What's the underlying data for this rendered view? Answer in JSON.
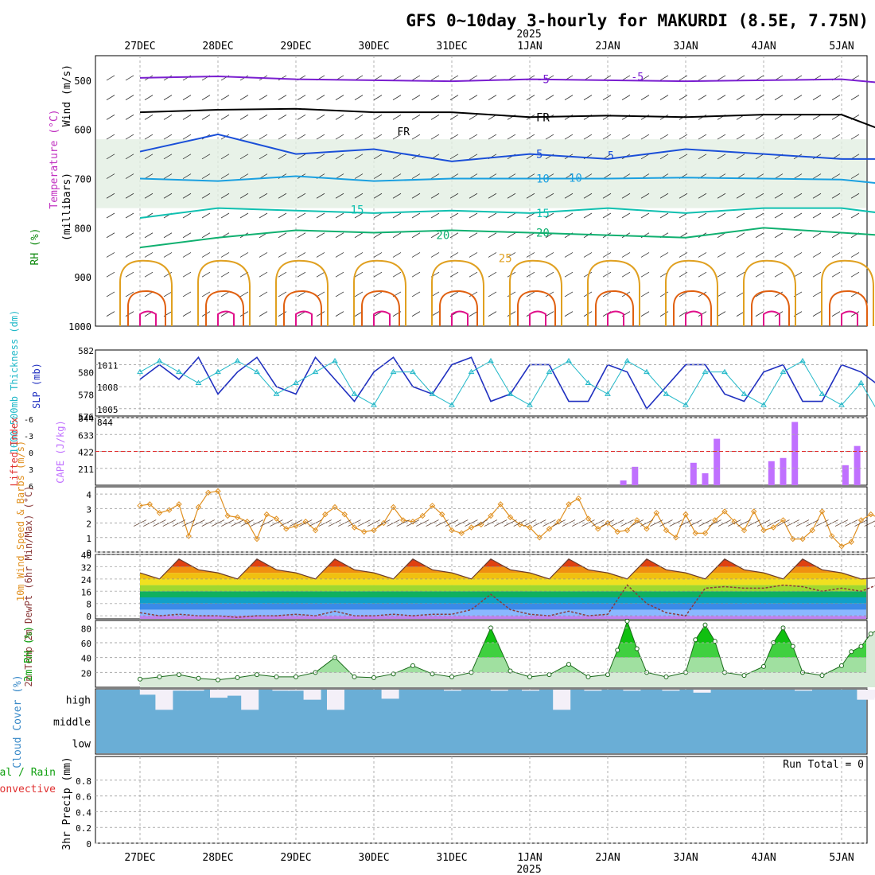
{
  "header": {
    "title": "GFS 0~10day 3-hourly for MAKURDI (8.5E, 7.75N)",
    "year": "2025"
  },
  "colors": {
    "purple": "#7a1fd0",
    "black": "#000000",
    "blue": "#1a4fd8",
    "lightblue": "#1aa0e0",
    "teal": "#10c0b0",
    "green": "#10b070",
    "orange": "#e0a020",
    "darkorange": "#e06010",
    "magenta": "#e0108a",
    "slp": "#2030c0",
    "thick": "#20b8c8",
    "li": "#e03030",
    "cape": "#c070ff",
    "wind10": "#e09020",
    "dewpt": "#8b3a3a",
    "rh": "#18c018",
    "cloud": "#6aaed6",
    "panelgrid": "#a0a0a0"
  },
  "x_axis": {
    "date_labels": [
      "27DEC",
      "28DEC",
      "29DEC",
      "30DEC",
      "31DEC",
      "1JAN",
      "2JAN",
      "3JAN",
      "4JAN",
      "5JAN"
    ]
  },
  "panels": {
    "upper_air": {
      "ylabel": "(millibars)",
      "ylabel_wind": "Wind (m/s)",
      "ylabel_temp": "Temperature (°C)",
      "ylabel_rh": "RH (%)",
      "yticks": [
        "500",
        "600",
        "700",
        "800",
        "900",
        "1000"
      ],
      "contour_labels": [
        "-5",
        "FR",
        "5",
        "10",
        "15",
        "20",
        "25"
      ]
    },
    "slp": {
      "ylabel_thick": "1000-500mb Thickness (dm)",
      "ylabel_slp": "SLP (mb)",
      "left_ticks": [
        "582",
        "580",
        "578",
        "576"
      ],
      "right_ticks": [
        "1011",
        "1008",
        "1005"
      ]
    },
    "cape": {
      "ylabel_li": "Lifted Index",
      "ylabel_cape": "CAPE (J/kg)",
      "left_ticks": [
        "-6",
        "-3",
        "0",
        "3",
        "6"
      ],
      "right_ticks": [
        "844",
        "633",
        "422",
        "211"
      ]
    },
    "wind10": {
      "ylabel": "10m Wind Speed & Barbs (m/s)",
      "ticks": [
        "4",
        "3",
        "2",
        "1",
        "0"
      ]
    },
    "temp2m": {
      "ylabel": "2m Temp 2m DewPt (6hr Min/Max) (°C)",
      "ticks": [
        "40",
        "32",
        "24",
        "16",
        "8",
        "0"
      ]
    },
    "rh2m": {
      "ylabel": "2m RH (%)",
      "ticks": [
        "80",
        "60",
        "40",
        "20"
      ]
    },
    "cloud": {
      "ylabel": "Cloud Cover (%)",
      "levels": [
        "high",
        "middle",
        "low"
      ]
    },
    "precip": {
      "ylabel": "3hr Precip (mm)",
      "ylabel_total": "Total / Rain",
      "ylabel_conv": "Convective",
      "ticks": [
        "0.8",
        "0.6",
        "0.4",
        "0.2",
        "0"
      ],
      "run_total": "Run Total = 0"
    }
  },
  "chart_data": [
    {
      "type": "line",
      "title": "GFS 0~10day 3-hourly for MAKURDI (8.5E, 7.75N)",
      "panel": "upper_air",
      "ylabel": "millibars",
      "ylim": [
        450,
        1000
      ],
      "series": [
        {
          "name": "-5",
          "x": [
            0,
            1,
            2,
            3,
            4,
            5,
            6,
            7,
            8,
            9,
            9.5
          ],
          "values": [
            495,
            492,
            498,
            500,
            502,
            498,
            500,
            502,
            500,
            498,
            505
          ]
        },
        {
          "name": "FR",
          "x": [
            0,
            1,
            2,
            3,
            4,
            5,
            6,
            7,
            8,
            9,
            9.5
          ],
          "values": [
            565,
            560,
            558,
            565,
            565,
            575,
            572,
            575,
            570,
            570,
            600
          ]
        },
        {
          "name": "5",
          "x": [
            0,
            1,
            2,
            3,
            4,
            5,
            6,
            7,
            8,
            9,
            9.5
          ],
          "values": [
            645,
            610,
            650,
            640,
            665,
            650,
            660,
            640,
            650,
            660,
            660
          ]
        },
        {
          "name": "10",
          "x": [
            0,
            1,
            2,
            3,
            4,
            5,
            6,
            7,
            8,
            9,
            9.5
          ],
          "values": [
            700,
            705,
            695,
            705,
            700,
            700,
            700,
            698,
            700,
            702,
            710
          ]
        },
        {
          "name": "15",
          "x": [
            0,
            1,
            2,
            3,
            4,
            5,
            6,
            7,
            8,
            9,
            9.5
          ],
          "values": [
            780,
            760,
            765,
            770,
            765,
            770,
            760,
            770,
            760,
            760,
            770
          ]
        },
        {
          "name": "20",
          "x": [
            0,
            1,
            2,
            3,
            4,
            5,
            6,
            7,
            8,
            9,
            9.5
          ],
          "values": [
            840,
            820,
            805,
            810,
            805,
            810,
            815,
            820,
            800,
            810,
            815
          ]
        }
      ]
    },
    {
      "type": "line",
      "panel": "slp",
      "ylim_left": [
        576,
        582
      ],
      "ylim_right": [
        1004,
        1013
      ],
      "x": [
        0,
        0.25,
        0.5,
        0.75,
        1,
        1.25,
        1.5,
        1.75,
        2,
        2.25,
        2.5,
        2.75,
        3,
        3.25,
        3.5,
        3.75,
        4,
        4.25,
        4.5,
        4.75,
        5,
        5.25,
        5.5,
        5.75,
        6,
        6.25,
        6.5,
        6.75,
        7,
        7.25,
        7.5,
        7.75,
        8,
        8.25,
        8.5,
        8.75,
        9,
        9.25,
        9.5
      ],
      "series": [
        {
          "name": "SLP",
          "axis": "right",
          "values": [
            1009,
            1011,
            1009,
            1012,
            1007,
            1010,
            1012,
            1008,
            1007,
            1012,
            1009,
            1006,
            1010,
            1012,
            1008,
            1007,
            1011,
            1012,
            1006,
            1007,
            1011,
            1011,
            1006,
            1006,
            1011,
            1010,
            1005,
            1008,
            1011,
            1011,
            1007,
            1006,
            1010,
            1011,
            1006,
            1006,
            1011,
            1010,
            1008
          ]
        },
        {
          "name": "Thickness",
          "axis": "left",
          "values": [
            580,
            581,
            580,
            579,
            580,
            581,
            580,
            578,
            579,
            580,
            581,
            578,
            577,
            580,
            580,
            578,
            577,
            580,
            581,
            578,
            577,
            580,
            581,
            579,
            578,
            581,
            580,
            578,
            577,
            580,
            580,
            578,
            577,
            580,
            581,
            578,
            577,
            579,
            576
          ]
        }
      ]
    },
    {
      "type": "bar",
      "panel": "cape",
      "ylim": [
        0,
        844
      ],
      "x": [
        6.2,
        6.35,
        7.1,
        7.25,
        7.4,
        8.1,
        8.25,
        8.4,
        9.05,
        9.2
      ],
      "values": [
        60,
        230,
        280,
        150,
        580,
        300,
        340,
        790,
        250,
        490
      ]
    },
    {
      "type": "line",
      "panel": "wind10",
      "ylim": [
        0,
        4.5
      ],
      "x": [
        0,
        0.125,
        0.25,
        0.375,
        0.5,
        0.625,
        0.75,
        0.875,
        1,
        1.125,
        1.25,
        1.375,
        1.5,
        1.625,
        1.75,
        1.875,
        2,
        2.125,
        2.25,
        2.375,
        2.5,
        2.625,
        2.75,
        2.875,
        3,
        3.125,
        3.25,
        3.375,
        3.5,
        3.625,
        3.75,
        3.875,
        4,
        4.125,
        4.25,
        4.375,
        4.5,
        4.625,
        4.75,
        4.875,
        5,
        5.125,
        5.25,
        5.375,
        5.5,
        5.625,
        5.75,
        5.875,
        6,
        6.125,
        6.25,
        6.375,
        6.5,
        6.625,
        6.75,
        6.875,
        7,
        7.125,
        7.25,
        7.375,
        7.5,
        7.625,
        7.75,
        7.875,
        8,
        8.125,
        8.25,
        8.375,
        8.5,
        8.625,
        8.75,
        8.875,
        9,
        9.125,
        9.25,
        9.375,
        9.5
      ],
      "values": [
        3.2,
        3.3,
        2.7,
        2.9,
        3.3,
        1.1,
        3.1,
        4.1,
        4.2,
        2.5,
        2.4,
        2.1,
        0.9,
        2.6,
        2.3,
        1.6,
        1.8,
        2.1,
        1.5,
        2.6,
        3.1,
        2.6,
        1.7,
        1.4,
        1.5,
        2.0,
        3.1,
        2.2,
        2.1,
        2.5,
        3.2,
        2.6,
        1.5,
        1.3,
        1.7,
        1.9,
        2.5,
        3.3,
        2.4,
        1.9,
        1.7,
        1.0,
        1.6,
        2.1,
        3.3,
        3.7,
        2.3,
        1.6,
        2.0,
        1.4,
        1.5,
        2.2,
        1.6,
        2.7,
        1.5,
        1.0,
        2.6,
        1.3,
        1.3,
        2.2,
        2.8,
        2.1,
        1.5,
        2.8,
        1.5,
        1.7,
        2.2,
        0.9,
        0.9,
        1.5,
        2.8,
        1.1,
        0.4,
        0.7,
        2.2,
        2.6,
        2.3
      ]
    },
    {
      "type": "area",
      "panel": "temp2m",
      "ylim": [
        -2,
        40
      ],
      "x": [
        0,
        0.25,
        0.5,
        0.75,
        1,
        1.25,
        1.5,
        1.75,
        2,
        2.25,
        2.5,
        2.75,
        3,
        3.25,
        3.5,
        3.75,
        4,
        4.25,
        4.5,
        4.75,
        5,
        5.25,
        5.5,
        5.75,
        6,
        6.25,
        6.5,
        6.75,
        7,
        7.25,
        7.5,
        7.75,
        8,
        8.25,
        8.5,
        8.75,
        9,
        9.25,
        9.5
      ],
      "series": [
        {
          "name": "2m Temp",
          "values": [
            28,
            24,
            37,
            30,
            28,
            24,
            37,
            30,
            28,
            24,
            37,
            30,
            28,
            24,
            37,
            30,
            28,
            24,
            37,
            30,
            28,
            24,
            37,
            30,
            28,
            24,
            37,
            30,
            28,
            24,
            37,
            30,
            28,
            24,
            37,
            30,
            28,
            24,
            25
          ]
        },
        {
          "name": "2m DewPt",
          "values": [
            2,
            0,
            1,
            0,
            0,
            -1,
            0,
            0,
            1,
            0,
            3,
            0,
            0,
            1,
            0,
            1,
            1,
            4,
            14,
            4,
            1,
            0,
            3,
            0,
            1,
            20,
            8,
            2,
            0,
            18,
            19,
            18,
            18,
            20,
            19,
            16,
            18,
            16,
            21
          ]
        }
      ]
    },
    {
      "type": "area",
      "panel": "rh2m",
      "ylim": [
        0,
        90
      ],
      "x": [
        0,
        0.25,
        0.5,
        0.75,
        1,
        1.25,
        1.5,
        1.75,
        2,
        2.25,
        2.5,
        2.75,
        3,
        3.25,
        3.5,
        3.75,
        4,
        4.25,
        4.5,
        4.75,
        5,
        5.25,
        5.5,
        5.75,
        6,
        6.125,
        6.25,
        6.375,
        6.5,
        6.75,
        7,
        7.125,
        7.25,
        7.375,
        7.5,
        7.75,
        8,
        8.125,
        8.25,
        8.375,
        8.5,
        8.75,
        9,
        9.125,
        9.25,
        9.375,
        9.5
      ],
      "values": [
        11,
        14,
        17,
        12,
        10,
        13,
        17,
        14,
        14,
        20,
        40,
        14,
        13,
        18,
        29,
        18,
        14,
        20,
        80,
        22,
        14,
        17,
        31,
        14,
        17,
        50,
        89,
        52,
        20,
        14,
        20,
        64,
        84,
        62,
        20,
        16,
        28,
        60,
        80,
        55,
        20,
        16,
        29,
        48,
        55,
        72,
        80
      ]
    },
    {
      "type": "bar",
      "panel": "cloud",
      "ylim": [
        0,
        100
      ],
      "levels": [
        "high",
        "middle",
        "low"
      ],
      "high_x": [
        0.1,
        0.3,
        0.5,
        0.7,
        1.0,
        1.2,
        1.4,
        1.8,
        2.0,
        2.2,
        2.5,
        3.2,
        4.0,
        4.6,
        5.0,
        5.4,
        5.8,
        6.3,
        6.8,
        7.2,
        8.5,
        9.3,
        9.5
      ],
      "high_values": [
        25,
        100,
        5,
        5,
        40,
        30,
        100,
        5,
        5,
        50,
        100,
        45,
        5,
        5,
        5,
        100,
        5,
        5,
        5,
        15,
        5,
        50,
        40
      ]
    },
    {
      "type": "line",
      "panel": "precip",
      "ylim": [
        0,
        1
      ],
      "values": []
    }
  ]
}
